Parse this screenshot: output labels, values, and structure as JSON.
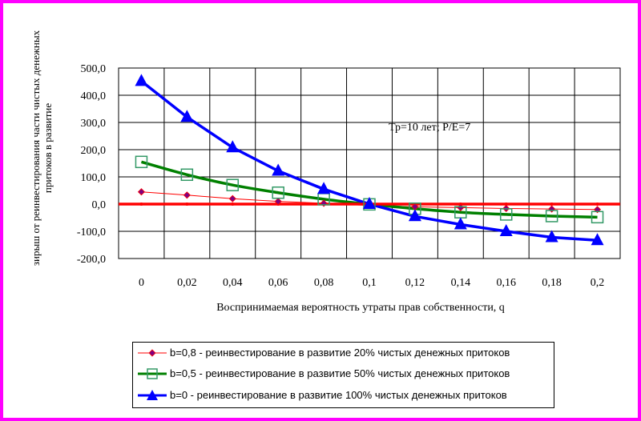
{
  "chart_data": {
    "type": "line",
    "annotation": "Тр=10 лет; P/E=7",
    "ylabel": "зирыш от реинвестирования части чистых денежных притоков в развитие",
    "xlabel": "Воспринимаемая вероятность утраты прав собственности, q",
    "categories": [
      "0",
      "0,02",
      "0,04",
      "0,06",
      "0,08",
      "0,1",
      "0,12",
      "0,14",
      "0,16",
      "0,18",
      "0,2"
    ],
    "ylim": [
      -200,
      500
    ],
    "yticks": [
      "500,0",
      "400,0",
      "300,0",
      "200,0",
      "100,0",
      "0,0",
      "-100,0",
      "-200,0"
    ],
    "grid": true,
    "legend_position": "bottom",
    "series": [
      {
        "name": "b=0,8 - реинвестирование в развитие 20% чистых денежных притоков",
        "color": "#ff0000",
        "marker_color": "#800080",
        "marker": "diamond",
        "values": [
          45,
          33,
          20,
          10,
          3,
          -5,
          -10,
          -13,
          -16,
          -18,
          -20
        ]
      },
      {
        "name": "b=0,5 - реинвестирование в развитие 50% чистых денежных притоков",
        "color": "#008000",
        "marker_color": "#339966",
        "marker": "square",
        "values": [
          155,
          108,
          70,
          42,
          18,
          -1,
          -17,
          -30,
          -38,
          -44,
          -48
        ]
      },
      {
        "name": "b=0 - реинвестирование в развитие 100% чистых денежных притоков",
        "color": "#0000ff",
        "marker_color": "#0000ff",
        "marker": "triangle",
        "values": [
          452,
          320,
          208,
          122,
          55,
          0,
          -45,
          -75,
          -100,
          -122,
          -133
        ]
      }
    ],
    "zero_line_color": "#ff0000"
  }
}
